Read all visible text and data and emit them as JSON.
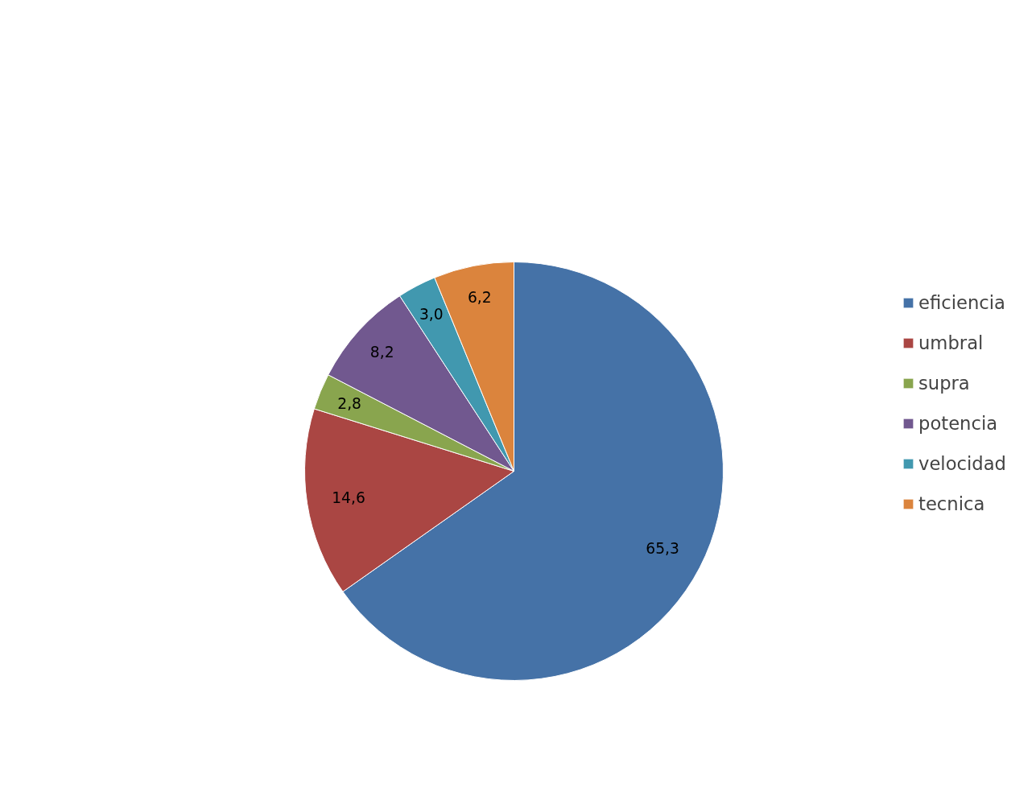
{
  "chart_data": {
    "type": "pie",
    "categories": [
      "eficiencia",
      "umbral",
      "supra",
      "potencia",
      "velocidad",
      "tecnica"
    ],
    "values": [
      65.3,
      14.6,
      2.8,
      8.2,
      3.0,
      6.2
    ],
    "value_labels": [
      "65,3",
      "14,6",
      "2,8",
      "8,2",
      "3,0",
      "6,2"
    ],
    "colors": [
      "#4572a7",
      "#aa4643",
      "#89a54e",
      "#71588f",
      "#4198af",
      "#db843d"
    ],
    "legend": "right"
  }
}
